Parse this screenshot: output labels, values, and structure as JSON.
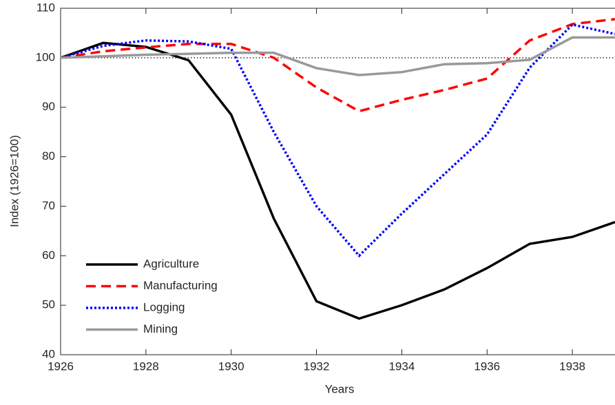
{
  "chart_data": {
    "type": "line",
    "x_label": "Years",
    "y_label": "Index (1926=100)",
    "x": [
      1926,
      1927,
      1928,
      1929,
      1930,
      1931,
      1932,
      1933,
      1934,
      1935,
      1936,
      1937,
      1938,
      1939
    ],
    "series": [
      {
        "name": "Agriculture",
        "color": "#000000",
        "dash": "solid",
        "values": [
          100,
          103,
          102.2,
          99.5,
          88.5,
          67.5,
          50.8,
          47.3,
          50,
          53.2,
          57.5,
          62.4,
          63.8,
          66.8
        ]
      },
      {
        "name": "Manufacturing",
        "color": "#ff0000",
        "dash": "dashed",
        "values": [
          100,
          101.3,
          102.1,
          102.8,
          102.8,
          100,
          94,
          89.2,
          91.5,
          93.5,
          95.8,
          103.5,
          106.8,
          107.8
        ]
      },
      {
        "name": "Logging",
        "color": "#0000ff",
        "dash": "dotted",
        "values": [
          100,
          102.4,
          103.5,
          103.3,
          101.8,
          85,
          70,
          60,
          68.5,
          76.5,
          84.5,
          98,
          106.7,
          104.8
        ]
      },
      {
        "name": "Mining",
        "color": "#999999",
        "dash": "solid",
        "values": [
          100,
          100.3,
          100.6,
          100.8,
          101,
          101,
          97.9,
          96.5,
          97.1,
          98.7,
          98.9,
          99.6,
          104.1,
          104.1
        ]
      }
    ],
    "reference_line": 100,
    "xlim": [
      1926,
      1939
    ],
    "xticks": [
      1926,
      1928,
      1930,
      1932,
      1934,
      1936,
      1938
    ],
    "ylim": [
      40,
      110
    ],
    "yticks": [
      40,
      50,
      60,
      70,
      80,
      90,
      100,
      110
    ],
    "legend": "lower-left",
    "grid": false
  }
}
